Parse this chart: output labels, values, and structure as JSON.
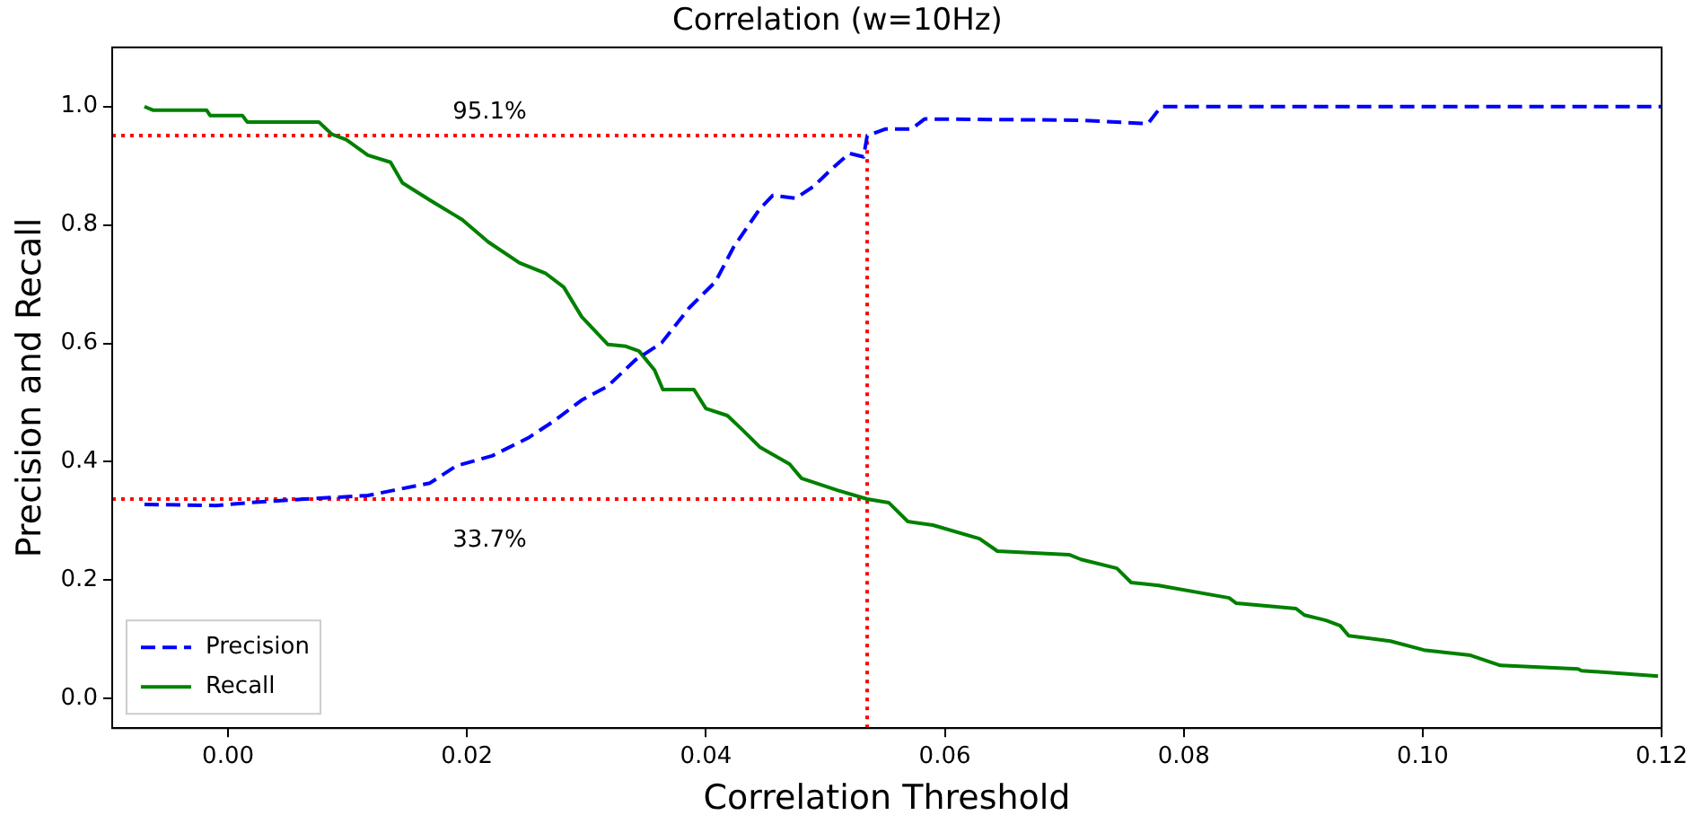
{
  "chart_data": {
    "type": "line",
    "title": "Correlation (w=10Hz)",
    "xlabel": "Correlation Threshold",
    "ylabel": "Precision and Recall",
    "xlim": [
      -0.0097,
      0.12
    ],
    "ylim": [
      -0.05,
      1.1
    ],
    "xticks": [
      {
        "value": 0,
        "label": "0.00"
      },
      {
        "value": 0.02,
        "label": "0.02"
      },
      {
        "value": 0.04,
        "label": "0.04"
      },
      {
        "value": 0.06,
        "label": "0.06"
      },
      {
        "value": 0.08,
        "label": "0.08"
      },
      {
        "value": 0.1,
        "label": "0.10"
      },
      {
        "value": 0.12,
        "label": "0.12"
      }
    ],
    "yticks": [
      {
        "value": 0,
        "label": "0.0"
      },
      {
        "value": 0.2,
        "label": "0.2"
      },
      {
        "value": 0.4,
        "label": "0.4"
      },
      {
        "value": 0.6,
        "label": "0.6"
      },
      {
        "value": 0.8,
        "label": "0.8"
      },
      {
        "value": 1,
        "label": "1.0"
      }
    ],
    "grid": false,
    "legend": "bottom left",
    "marker": "none",
    "series": [
      {
        "name": "Precision",
        "color": "#0000ff",
        "line_style": "dashed",
        "x": [
          -0.007,
          -0.001,
          0.0019,
          0.0064,
          0.0117,
          0.0139,
          0.0169,
          0.0191,
          0.0221,
          0.0251,
          0.0273,
          0.0296,
          0.0318,
          0.0341,
          0.0363,
          0.0386,
          0.0408,
          0.0423,
          0.0445,
          0.0456,
          0.0475,
          0.049,
          0.0505,
          0.052,
          0.0532,
          0.0535,
          0.055,
          0.0572,
          0.0583,
          0.0714,
          0.077,
          0.0781,
          0.12
        ],
        "values": [
          0.328,
          0.326,
          0.331,
          0.337,
          0.343,
          0.352,
          0.364,
          0.393,
          0.41,
          0.44,
          0.469,
          0.504,
          0.528,
          0.572,
          0.601,
          0.66,
          0.704,
          0.762,
          0.827,
          0.85,
          0.845,
          0.865,
          0.894,
          0.921,
          0.915,
          0.951,
          0.962,
          0.962,
          0.979,
          0.977,
          0.971,
          1.0,
          1.0
        ]
      },
      {
        "name": "Recall",
        "color": "#008000",
        "line_style": "solid",
        "x": [
          -0.007,
          -0.0063,
          -0.0018,
          -0.0015,
          0.0012,
          0.0016,
          0.0076,
          0.0087,
          0.0099,
          0.0117,
          0.0136,
          0.0146,
          0.0169,
          0.0196,
          0.0218,
          0.0244,
          0.0266,
          0.0281,
          0.0296,
          0.0318,
          0.0333,
          0.0344,
          0.0357,
          0.0364,
          0.039,
          0.04,
          0.0418,
          0.043,
          0.0445,
          0.047,
          0.048,
          0.051,
          0.0535,
          0.0553,
          0.0569,
          0.059,
          0.0629,
          0.0644,
          0.0704,
          0.0714,
          0.0744,
          0.0756,
          0.0779,
          0.0838,
          0.0844,
          0.0894,
          0.0901,
          0.0919,
          0.0931,
          0.0938,
          0.0973,
          0.1001,
          0.104,
          0.1065,
          0.113,
          0.1133,
          0.1197
        ],
        "values": [
          1.0,
          0.994,
          0.994,
          0.985,
          0.985,
          0.974,
          0.974,
          0.953,
          0.944,
          0.918,
          0.906,
          0.871,
          0.842,
          0.809,
          0.771,
          0.736,
          0.718,
          0.695,
          0.645,
          0.598,
          0.595,
          0.587,
          0.555,
          0.522,
          0.522,
          0.49,
          0.478,
          0.455,
          0.425,
          0.396,
          0.372,
          0.352,
          0.337,
          0.331,
          0.299,
          0.293,
          0.27,
          0.249,
          0.243,
          0.235,
          0.22,
          0.196,
          0.191,
          0.17,
          0.161,
          0.152,
          0.141,
          0.132,
          0.123,
          0.106,
          0.097,
          0.082,
          0.073,
          0.056,
          0.05,
          0.047,
          0.038
        ]
      }
    ],
    "ref_lines": [
      {
        "axis": "y",
        "value": 0.951,
        "label": "95.1%",
        "color": "#ff0000",
        "line_style": "dotted"
      },
      {
        "axis": "y",
        "value": 0.337,
        "label": "33.7%",
        "color": "#ff0000",
        "line_style": "dotted"
      },
      {
        "axis": "x",
        "value": 0.0535,
        "color": "#ff0000",
        "line_style": "dotted"
      }
    ]
  }
}
